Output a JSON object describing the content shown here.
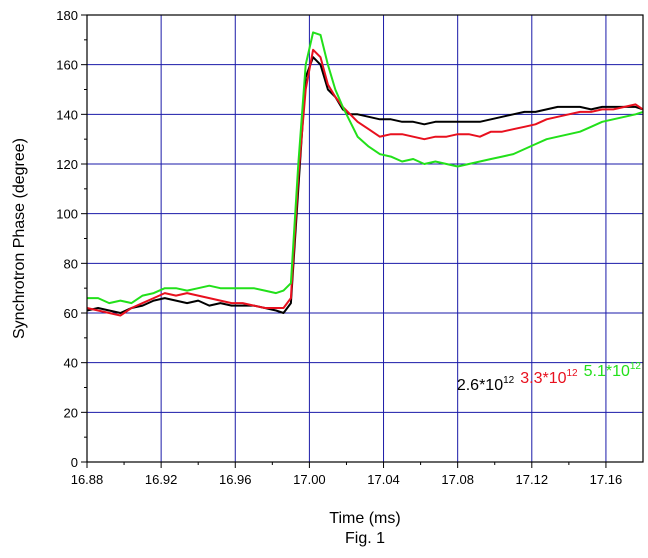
{
  "chart_data": {
    "type": "line",
    "xlabel": "Time (ms)",
    "ylabel": "Synchrotron Phase (degree)",
    "caption": "Fig. 1",
    "xlim": [
      16.88,
      17.18
    ],
    "ylim": [
      0,
      180
    ],
    "xticks": [
      "16.88",
      "16.92",
      "16.96",
      "17.00",
      "17.04",
      "17.08",
      "17.12",
      "17.16"
    ],
    "yticks": [
      "0",
      "20",
      "40",
      "60",
      "80",
      "100",
      "120",
      "140",
      "160",
      "180"
    ],
    "grid": true,
    "legend_position": "bottom-right",
    "series": [
      {
        "name": "2.6*10",
        "name_sup": "12",
        "color": "#000000",
        "x": [
          16.88,
          16.886,
          16.892,
          16.898,
          16.904,
          16.91,
          16.916,
          16.922,
          16.928,
          16.934,
          16.94,
          16.946,
          16.952,
          16.958,
          16.964,
          16.97,
          16.976,
          16.982,
          16.986,
          16.99,
          16.994,
          16.998,
          17.002,
          17.006,
          17.01,
          17.014,
          17.018,
          17.022,
          17.026,
          17.032,
          17.038,
          17.044,
          17.05,
          17.056,
          17.062,
          17.068,
          17.074,
          17.08,
          17.086,
          17.092,
          17.098,
          17.104,
          17.11,
          17.116,
          17.122,
          17.128,
          17.134,
          17.14,
          17.146,
          17.152,
          17.158,
          17.164,
          17.17,
          17.176,
          17.18
        ],
        "y": [
          61,
          62,
          61,
          60,
          62,
          63,
          65,
          66,
          65,
          64,
          65,
          63,
          64,
          63,
          63,
          63,
          62,
          61,
          60,
          64,
          110,
          155,
          163,
          160,
          150,
          147,
          142,
          140,
          140,
          139,
          138,
          138,
          137,
          137,
          136,
          137,
          137,
          137,
          137,
          137,
          138,
          139,
          140,
          141,
          141,
          142,
          143,
          143,
          143,
          142,
          143,
          143,
          143,
          143,
          142
        ]
      },
      {
        "name": "3.3*10",
        "name_sup": "12",
        "color": "#e8101e",
        "x": [
          16.88,
          16.886,
          16.892,
          16.898,
          16.904,
          16.91,
          16.916,
          16.922,
          16.928,
          16.934,
          16.94,
          16.946,
          16.952,
          16.958,
          16.964,
          16.97,
          16.976,
          16.982,
          16.986,
          16.99,
          16.994,
          16.998,
          17.002,
          17.006,
          17.01,
          17.014,
          17.018,
          17.022,
          17.026,
          17.032,
          17.038,
          17.044,
          17.05,
          17.056,
          17.062,
          17.068,
          17.074,
          17.08,
          17.086,
          17.092,
          17.098,
          17.104,
          17.11,
          17.116,
          17.122,
          17.128,
          17.134,
          17.14,
          17.146,
          17.152,
          17.158,
          17.164,
          17.17,
          17.176,
          17.18
        ],
        "y": [
          62,
          61,
          60,
          59,
          62,
          64,
          66,
          68,
          67,
          68,
          67,
          66,
          65,
          64,
          64,
          63,
          62,
          62,
          62,
          66,
          115,
          150,
          166,
          163,
          152,
          147,
          143,
          140,
          137,
          134,
          131,
          132,
          132,
          131,
          130,
          131,
          131,
          132,
          132,
          131,
          133,
          133,
          134,
          135,
          136,
          138,
          139,
          140,
          141,
          141,
          142,
          142,
          143,
          144,
          142
        ]
      },
      {
        "name": "5.1*10",
        "name_sup": "12",
        "color": "#22e01a",
        "x": [
          16.88,
          16.886,
          16.892,
          16.898,
          16.904,
          16.91,
          16.916,
          16.922,
          16.928,
          16.934,
          16.94,
          16.946,
          16.952,
          16.958,
          16.964,
          16.97,
          16.976,
          16.982,
          16.986,
          16.99,
          16.994,
          16.998,
          17.002,
          17.006,
          17.01,
          17.014,
          17.018,
          17.022,
          17.026,
          17.032,
          17.038,
          17.044,
          17.05,
          17.056,
          17.062,
          17.068,
          17.074,
          17.08,
          17.086,
          17.092,
          17.098,
          17.104,
          17.11,
          17.116,
          17.122,
          17.128,
          17.134,
          17.14,
          17.146,
          17.152,
          17.158,
          17.164,
          17.17,
          17.176,
          17.18
        ],
        "y": [
          66,
          66,
          64,
          65,
          64,
          67,
          68,
          70,
          70,
          69,
          70,
          71,
          70,
          70,
          70,
          70,
          69,
          68,
          69,
          72,
          120,
          160,
          173,
          172,
          160,
          150,
          143,
          137,
          131,
          127,
          124,
          123,
          121,
          122,
          120,
          121,
          120,
          119,
          120,
          121,
          122,
          123,
          124,
          126,
          128,
          130,
          131,
          132,
          133,
          135,
          137,
          138,
          139,
          140,
          141
        ]
      }
    ]
  }
}
